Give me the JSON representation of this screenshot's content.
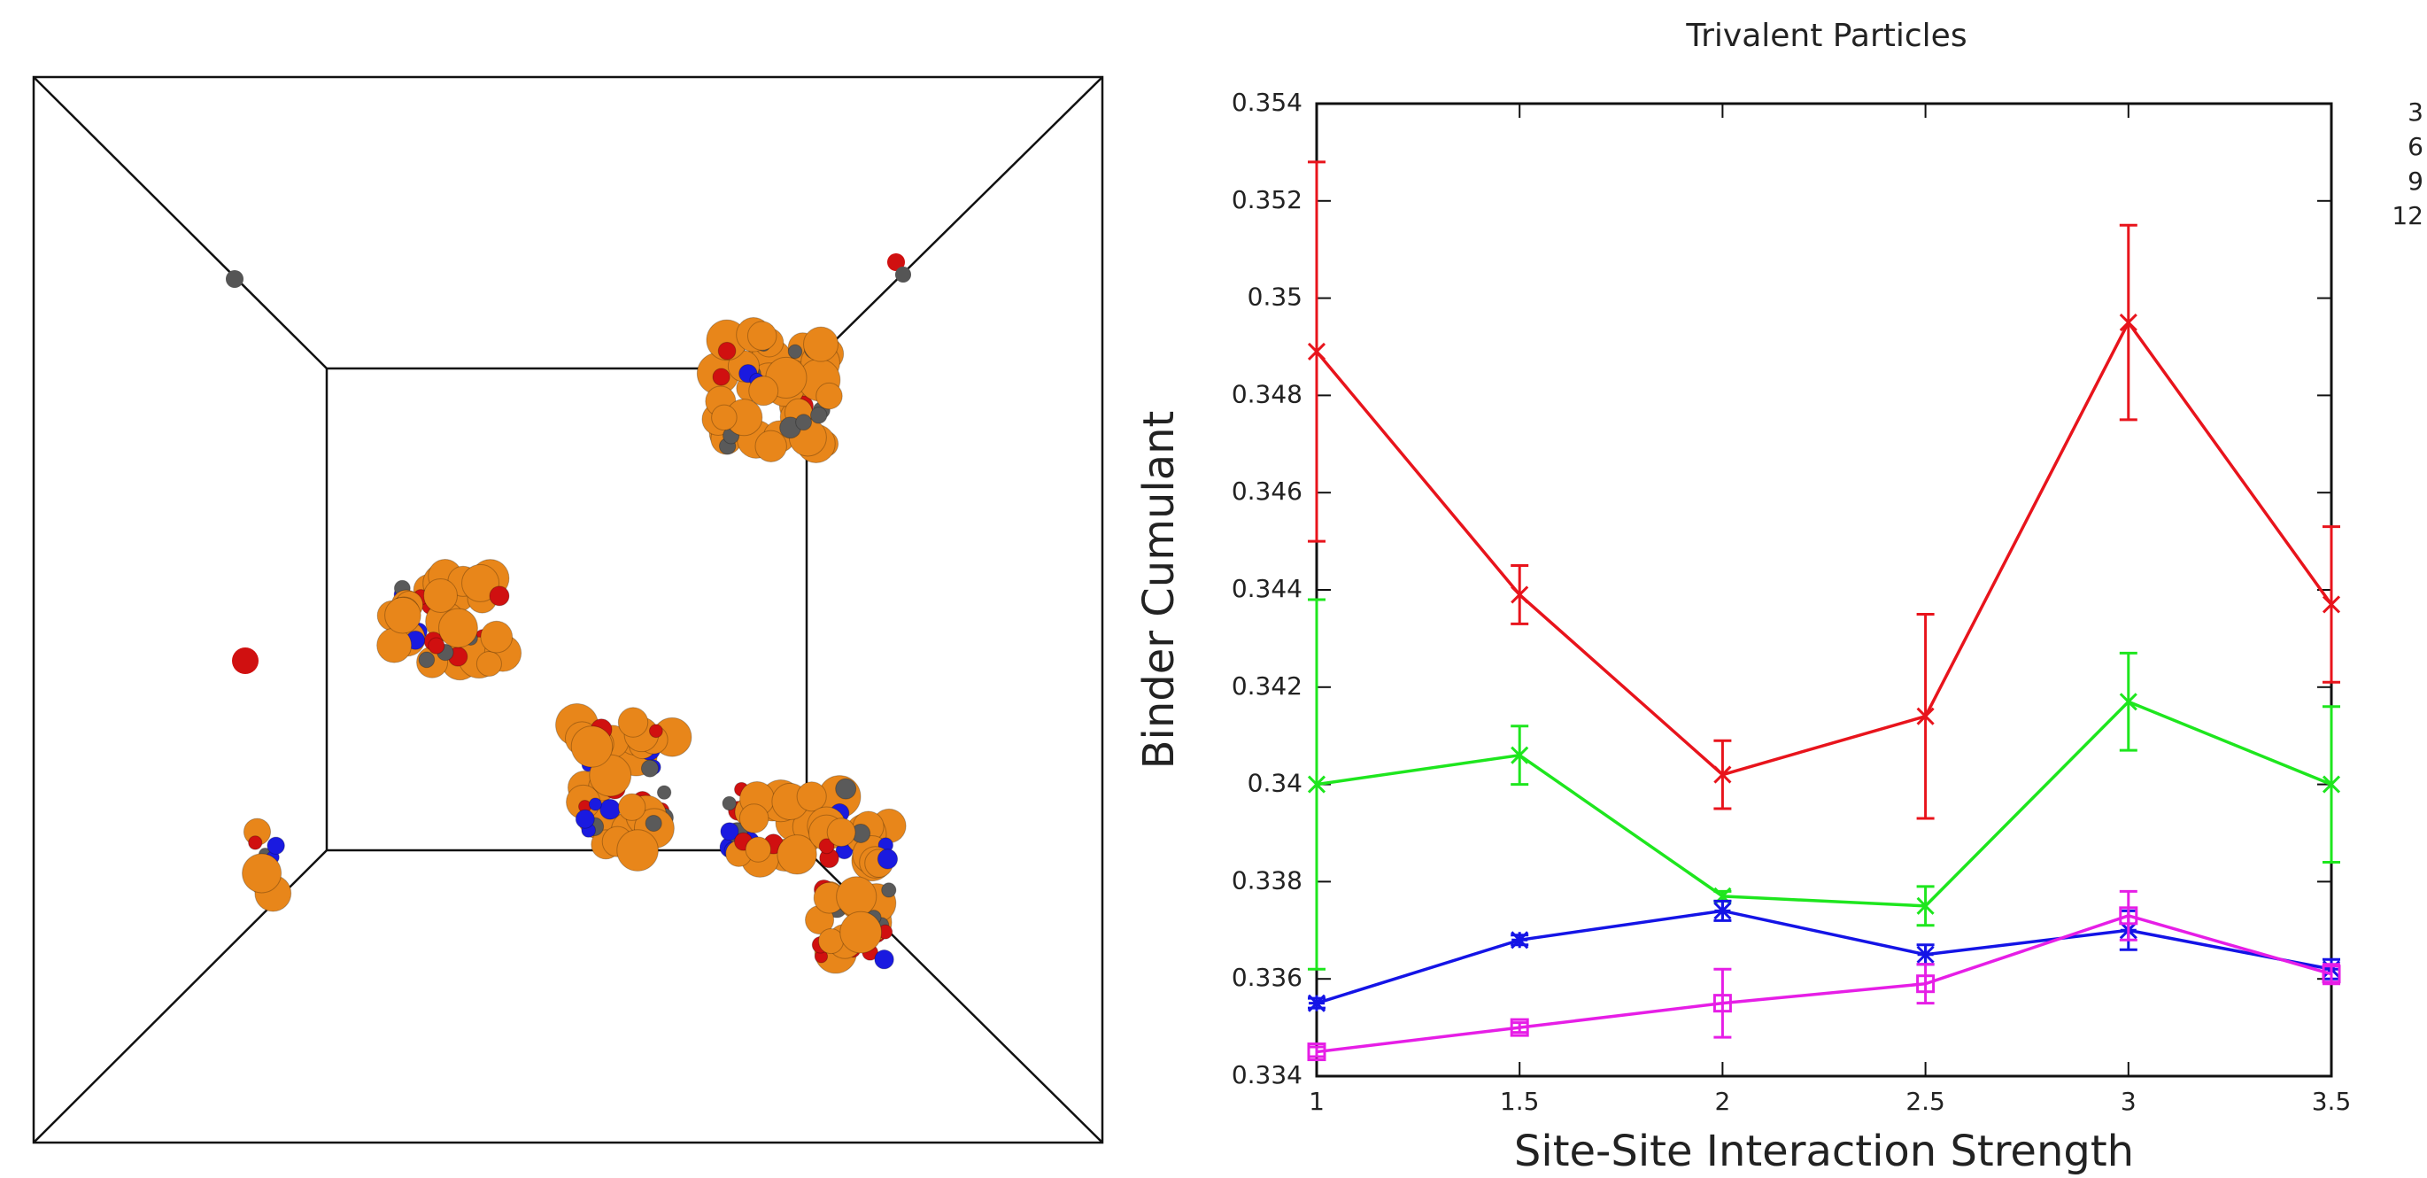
{
  "chart_data": {
    "type": "line",
    "title": "Trivalent Particles",
    "x_label": "Site-Site Interaction Strength",
    "y_label": "Binder Cumulant",
    "x": [
      1,
      1.5,
      2,
      2.5,
      3,
      3.5
    ],
    "series": [
      {
        "name": "3",
        "color": "#e8141c",
        "marker": "x",
        "values": [
          0.3489,
          0.3439,
          0.3402,
          0.3414,
          0.3495,
          0.3437
        ],
        "errors": [
          0.0039,
          0.0006,
          0.0007,
          0.0021,
          0.002,
          0.0016
        ]
      },
      {
        "name": "6",
        "color": "#1ee61e",
        "marker": "x",
        "values": [
          0.34,
          0.3406,
          0.3377,
          0.3375,
          0.3417,
          0.34
        ],
        "errors": [
          0.0038,
          0.0006,
          0.0001,
          0.0004,
          0.001,
          0.0016
        ]
      },
      {
        "name": "9",
        "color": "#1414e6",
        "marker": "star",
        "values": [
          0.3355,
          0.3368,
          0.3374,
          0.3365,
          0.337,
          0.3362
        ],
        "errors": [
          0.0001,
          0.0001,
          0.0002,
          0.0002,
          0.0004,
          0.0002
        ]
      },
      {
        "name": "12",
        "color": "#e61ee6",
        "marker": "square",
        "values": [
          0.3345,
          0.335,
          0.3355,
          0.3359,
          0.3373,
          0.3361
        ],
        "errors": [
          0.0001,
          0.0001,
          0.0007,
          0.0004,
          0.0005,
          0.0002
        ]
      }
    ],
    "xlim": [
      1,
      3.5
    ],
    "xticks": [
      1,
      1.5,
      2,
      2.5,
      3,
      3.5
    ],
    "ylim": [
      0.334,
      0.354
    ],
    "yticks": [
      0.334,
      0.336,
      0.338,
      0.34,
      0.342,
      0.344,
      0.346,
      0.348,
      0.35,
      0.352,
      0.354
    ],
    "legend": "top-right"
  }
}
